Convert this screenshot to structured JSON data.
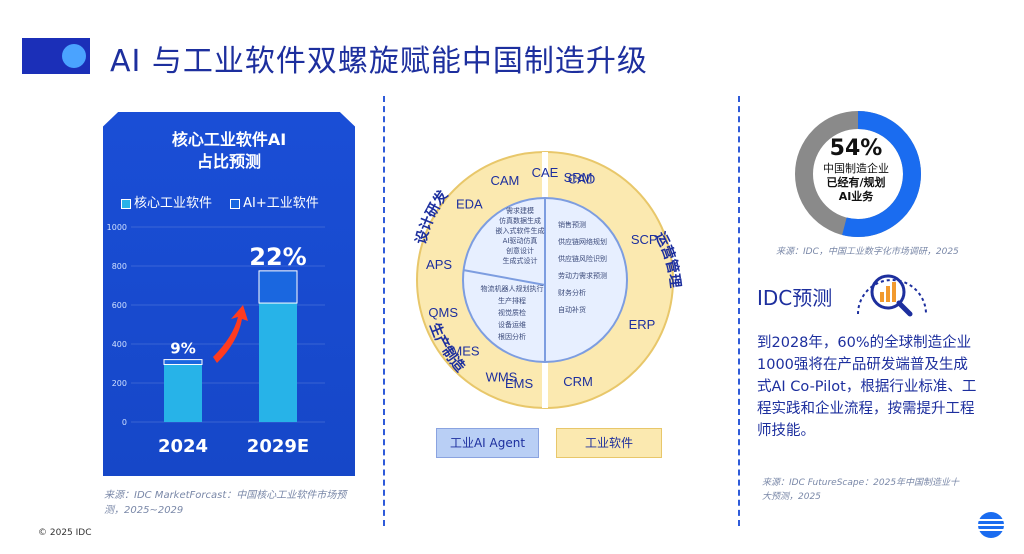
{
  "header": {
    "title": "AI 与工业软件双螺旋赋能中国制造升级"
  },
  "left_panel": {
    "title_line1": "核心工业软件AI",
    "title_line2": "占比预测",
    "legend": [
      "核心工业软件",
      "AI+工业软件"
    ],
    "source": "来源：IDC MarketForcast：中国核心工业软件市场预测，2025~2029",
    "copyright": "© 2025 IDC"
  },
  "chart_data": {
    "type": "bar",
    "title": "核心工业软件AI占比预测",
    "categories": [
      "2024",
      "2029E"
    ],
    "series": [
      {
        "name": "核心工业软件",
        "values": [
          295,
          610
        ]
      },
      {
        "name": "AI+工业软件",
        "values": [
          25,
          165
        ]
      }
    ],
    "data_labels": [
      "9%",
      "22%"
    ],
    "yticks": [
      0,
      200,
      400,
      600,
      800,
      1000
    ],
    "ylim": [
      0,
      1000
    ],
    "colors": {
      "core": "#27b3e8",
      "ai": "#1a67e0",
      "panel": "#1a4ed6"
    }
  },
  "wheel": {
    "left_group": {
      "design": "设计研发",
      "production": "生产制造"
    },
    "right_group": "运营管理",
    "left_items": [
      "CAD",
      "CAE",
      "CAM",
      "EDA",
      "APS",
      "QMS",
      "MES",
      "WMS"
    ],
    "right_items": [
      "SRM",
      "SCP",
      "ERP",
      "CRM",
      "EMS"
    ],
    "left_top_inner": [
      "需求建模",
      "仿真数据生成",
      "嵌入式软件生成",
      "AI驱动仿真",
      "创意设计",
      "生成式设计"
    ],
    "left_bottom_inner": [
      "物流机器人规划执行",
      "生产排程",
      "视觉质检",
      "设备运维",
      "根因分析"
    ],
    "right_inner": [
      "销售预测",
      "供应链网络规划",
      "供应链风险识别",
      "劳动力需求预测",
      "财务分析",
      "自动补货"
    ],
    "legend_agent": "工业AI Agent",
    "legend_software": "工业软件"
  },
  "right_panel": {
    "donut_pct": "54%",
    "donut_value": 0.54,
    "donut_line1": "中国制造企业",
    "donut_line2": "已经有/规划",
    "donut_line3": "AI业务",
    "donut_source": "来源：IDC，中国工业数字化市场调研，2025",
    "idc_title": "IDC预测",
    "idc_body": "到2028年，60%的全球制造企业1000强将在产品研发端普及生成式AI Co-Pilot，根据行业标准、工程实践和企业流程，按需提升工程师技能。",
    "body_source": "来源：IDC FutureScape：2025年中国制造业十大预测，2025"
  }
}
